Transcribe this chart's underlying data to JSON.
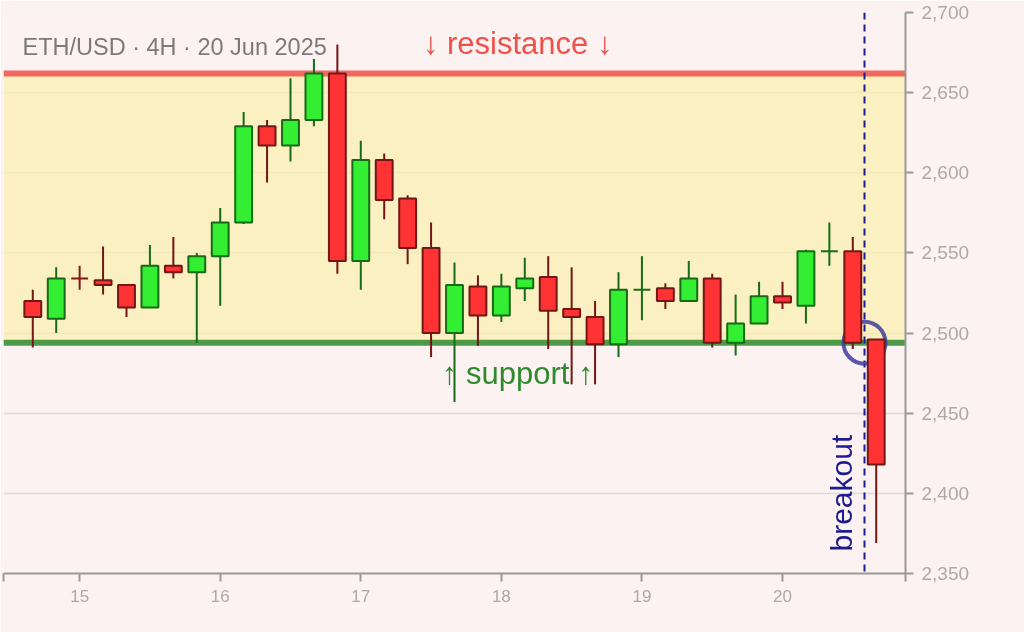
{
  "chart_data": {
    "type": "candlestick",
    "title": "ETH/USD · 4H · 20 Jun 2025",
    "x": [
      "2025-06-14T16:00",
      "2025-06-14T20:00",
      "2025-06-15T00:00",
      "2025-06-15T04:00",
      "2025-06-15T08:00",
      "2025-06-15T12:00",
      "2025-06-15T16:00",
      "2025-06-15T20:00",
      "2025-06-16T00:00",
      "2025-06-16T04:00",
      "2025-06-16T08:00",
      "2025-06-16T12:00",
      "2025-06-16T16:00",
      "2025-06-16T20:00",
      "2025-06-17T00:00",
      "2025-06-17T04:00",
      "2025-06-17T08:00",
      "2025-06-17T12:00",
      "2025-06-17T16:00",
      "2025-06-17T20:00",
      "2025-06-18T00:00",
      "2025-06-18T04:00",
      "2025-06-18T08:00",
      "2025-06-18T12:00",
      "2025-06-18T16:00",
      "2025-06-18T20:00",
      "2025-06-19T00:00",
      "2025-06-19T04:00",
      "2025-06-19T08:00",
      "2025-06-19T12:00",
      "2025-06-19T16:00",
      "2025-06-19T20:00",
      "2025-06-20T00:00",
      "2025-06-20T04:00",
      "2025-06-20T08:00",
      "2025-06-20T12:00",
      "2025-06-20T16:00"
    ],
    "ohlc": [
      [
        2520,
        2527,
        2491,
        2510
      ],
      [
        2509,
        2541,
        2500,
        2534
      ],
      [
        2534,
        2542,
        2527,
        2534
      ],
      [
        2533,
        2554,
        2524,
        2530
      ],
      [
        2530,
        2530,
        2510,
        2516
      ],
      [
        2516,
        2555,
        2516,
        2542
      ],
      [
        2542,
        2560,
        2534,
        2538
      ],
      [
        2538,
        2550,
        2494,
        2548
      ],
      [
        2548,
        2578,
        2517,
        2569
      ],
      [
        2569,
        2638,
        2568,
        2629
      ],
      [
        2629,
        2633,
        2594,
        2617
      ],
      [
        2617,
        2659,
        2607,
        2633
      ],
      [
        2633,
        2671,
        2629,
        2662
      ],
      [
        2662,
        2680,
        2537,
        2545
      ],
      [
        2545,
        2620,
        2527,
        2608
      ],
      [
        2608,
        2612,
        2571,
        2583
      ],
      [
        2584,
        2586,
        2543,
        2553
      ],
      [
        2553,
        2569,
        2485,
        2500
      ],
      [
        2500,
        2544,
        2457,
        2530
      ],
      [
        2529,
        2536,
        2492,
        2511
      ],
      [
        2511,
        2537,
        2507,
        2529
      ],
      [
        2528,
        2547,
        2520,
        2534
      ],
      [
        2535,
        2548,
        2490,
        2514
      ],
      [
        2515,
        2541,
        2468,
        2510
      ],
      [
        2510,
        2520,
        2468,
        2493
      ],
      [
        2493,
        2538,
        2485,
        2527
      ],
      [
        2527,
        2548,
        2508,
        2527
      ],
      [
        2528,
        2531,
        2515,
        2520
      ],
      [
        2520,
        2545,
        2520,
        2534
      ],
      [
        2534,
        2537,
        2491,
        2494
      ],
      [
        2494,
        2524,
        2486,
        2506
      ],
      [
        2506,
        2532,
        2506,
        2523
      ],
      [
        2523,
        2532,
        2515,
        2519
      ],
      [
        2517,
        2552,
        2506,
        2551
      ],
      [
        2551,
        2569,
        2542,
        2551
      ],
      [
        2551,
        2560,
        2490,
        2494
      ],
      [
        2496,
        2496,
        2369,
        2418
      ]
    ],
    "colors": [
      "#ff3333",
      "#33ee33",
      "#801818",
      "#ff3333",
      "#ff3333",
      "#33ee33",
      "#ff3333",
      "#33ee33",
      "#33ee33",
      "#33ee33",
      "#ff3333",
      "#33ee33",
      "#33ee33",
      "#ff3333",
      "#33ee33",
      "#ff3333",
      "#ff3333",
      "#ff3333",
      "#33ee33",
      "#ff3333",
      "#33ee33",
      "#33ee33",
      "#ff3333",
      "#ff3333",
      "#ff3333",
      "#33ee33",
      "#146e14",
      "#ff3333",
      "#33ee33",
      "#ff3333",
      "#33ee33",
      "#33ee33",
      "#ff3333",
      "#33ee33",
      "#146e14",
      "#ff3333",
      "#ff3333"
    ],
    "series": [
      {
        "type": "scatter",
        "x": [
          "2025-06-20T14:00"
        ],
        "values": [
          2494
        ],
        "color": "#3d3d9e",
        "marker": "circle"
      }
    ],
    "xlim": [
      "2025-06-14T11:00",
      "2025-06-20T21:00"
    ],
    "xticks": [
      {
        "value": "2025-06-14T11:00",
        "label": null
      },
      {
        "value": "2025-06-15",
        "label": "15"
      },
      {
        "value": "2025-06-16",
        "label": "16"
      },
      {
        "value": "2025-06-17",
        "label": "17"
      },
      {
        "value": "2025-06-18",
        "label": "18"
      },
      {
        "value": "2025-06-19",
        "label": "19"
      },
      {
        "value": "2025-06-20",
        "label": "20"
      },
      {
        "value": "2025-06-20T21:00",
        "label": null
      }
    ],
    "ylim": [
      2350,
      2700
    ],
    "yticks": [
      {
        "value": 2350,
        "label": "2,350"
      },
      {
        "value": 2400,
        "label": "2,400"
      },
      {
        "value": 2450,
        "label": "2,450"
      },
      {
        "value": 2500,
        "label": "2,500"
      },
      {
        "value": 2550,
        "label": "2,550"
      },
      {
        "value": 2600,
        "label": "2,600"
      },
      {
        "value": 2650,
        "label": "2,650"
      },
      {
        "value": 2700,
        "label": "2,700"
      }
    ],
    "grid": "y",
    "bands": [
      {
        "axis": "y",
        "from": 2494,
        "to": 2662,
        "color": "#f9efb0"
      }
    ],
    "ref_lines": [
      {
        "axis": "y",
        "value": 2662,
        "label": "↓ resistance ↓",
        "color": "#f0504a"
      },
      {
        "axis": "y",
        "value": 2494,
        "label": "↑ support ↑",
        "color": "#2f8a2f"
      },
      {
        "axis": "x",
        "value": "2025-06-20T14:00",
        "label": "breakout",
        "color": "#1c1c8f",
        "line_style": "dashed"
      }
    ]
  }
}
